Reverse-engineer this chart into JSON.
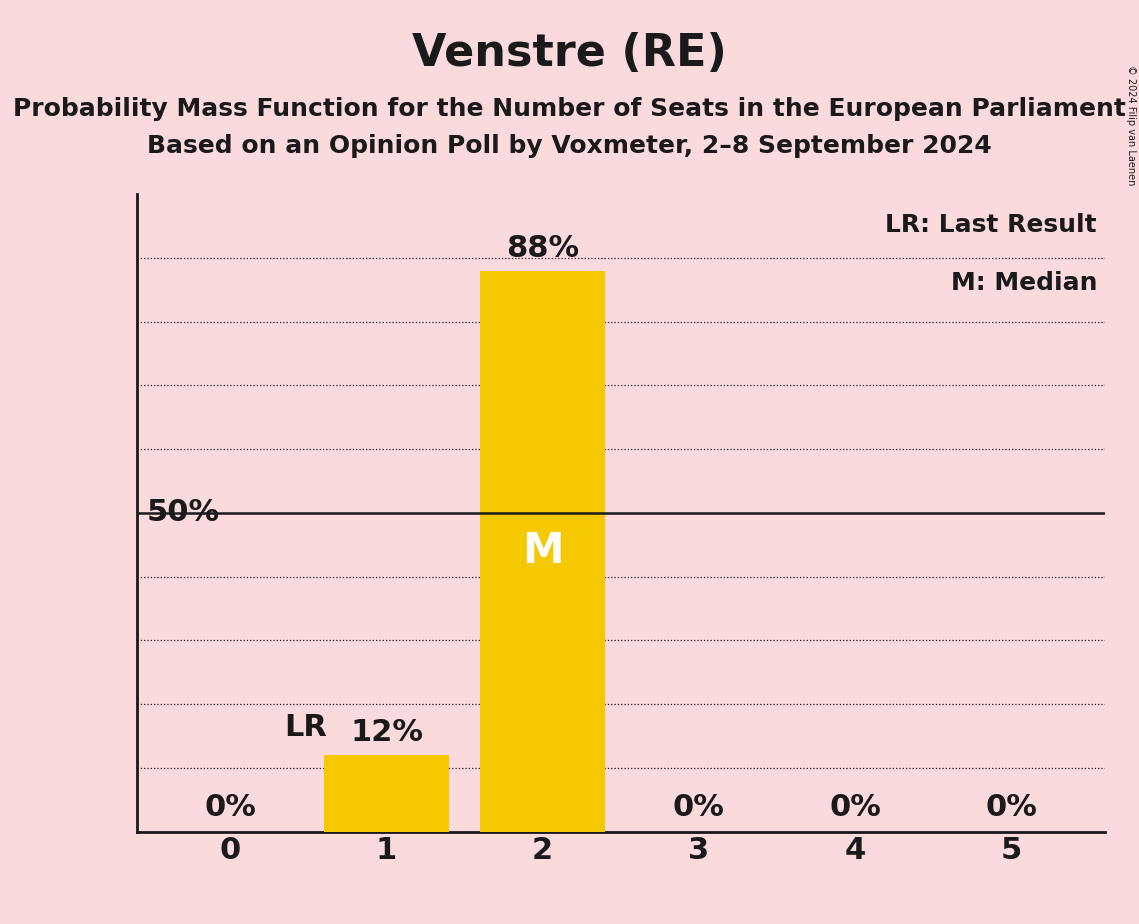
{
  "title": "Venstre (RE)",
  "subtitle1": "Probability Mass Function for the Number of Seats in the European Parliament",
  "subtitle2": "Based on an Opinion Poll by Voxmeter, 2–8 September 2024",
  "copyright": "© 2024 Filip van Laenen",
  "categories": [
    0,
    1,
    2,
    3,
    4,
    5
  ],
  "values": [
    0,
    12,
    88,
    0,
    0,
    0
  ],
  "bar_color": "#F5C800",
  "background_color": "#FADADD",
  "bar_label_color_above": "#1a1a1a",
  "bar_label_color_inside": "#FFFFFF",
  "median_bar": 2,
  "last_result_bar": 1,
  "fifty_pct_line": 50,
  "ylabel_50pct": "50%",
  "legend_lr": "LR: Last Result",
  "legend_m": "M: Median",
  "title_fontsize": 32,
  "subtitle_fontsize": 18,
  "bar_label_fontsize": 22,
  "tick_fontsize": 22,
  "legend_fontsize": 18,
  "ylim": [
    0,
    100
  ],
  "dotted_lines": [
    10,
    20,
    30,
    40,
    60,
    70,
    80,
    90
  ]
}
